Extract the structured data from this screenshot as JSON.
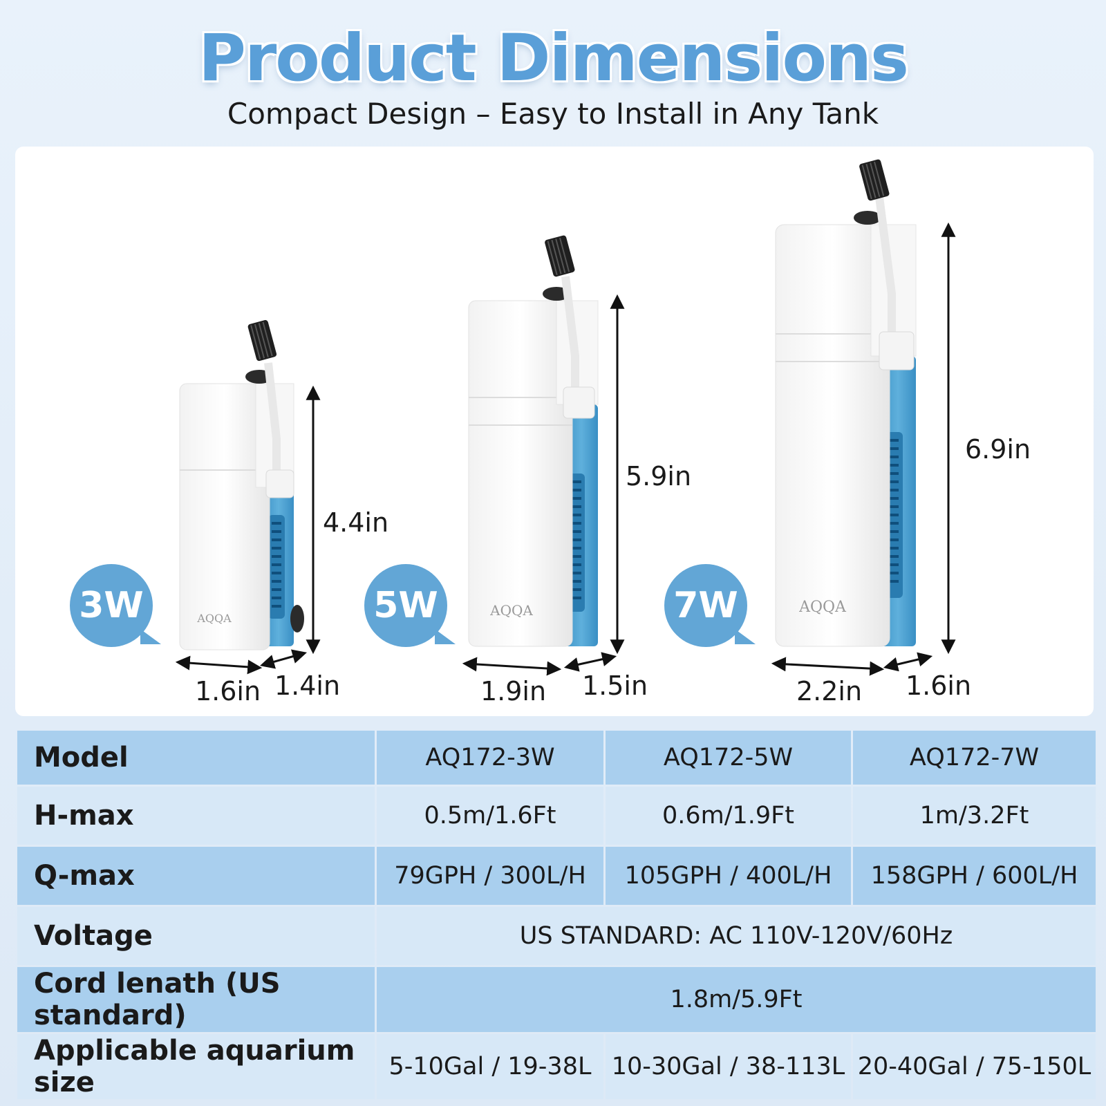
{
  "header": {
    "title": "Product Dimensions",
    "subtitle": "Compact Design – Easy to Install in Any Tank"
  },
  "colors": {
    "accent": "#5a9fd8",
    "badge": "#62a6d6",
    "row_dark": "#a9cfee",
    "row_light": "#d7e8f7",
    "pump_side": "#3a8fc4"
  },
  "products": [
    {
      "badge": "3W",
      "height": "4.4in",
      "width": "1.6in",
      "depth": "1.4in"
    },
    {
      "badge": "5W",
      "height": "5.9in",
      "width": "1.9in",
      "depth": "1.5in"
    },
    {
      "badge": "7W",
      "height": "6.9in",
      "width": "2.2in",
      "depth": "1.6in"
    }
  ],
  "specs": {
    "rows": [
      {
        "label": "Model",
        "values": [
          "AQ172-3W",
          "AQ172-5W",
          "AQ172-7W"
        ]
      },
      {
        "label": "H-max",
        "values": [
          "0.5m/1.6Ft",
          "0.6m/1.9Ft",
          "1m/3.2Ft"
        ]
      },
      {
        "label": "Q-max",
        "values": [
          "79GPH / 300L/H",
          "105GPH / 400L/H",
          "158GPH / 600L/H"
        ]
      },
      {
        "label": "Voltage",
        "value": "US STANDARD: AC 110V-120V/60Hz"
      },
      {
        "label": "Cord lenath (US standard)",
        "value": "1.8m/5.9Ft"
      },
      {
        "label": "Applicable aquarium size",
        "values": [
          "5-10Gal / 19-38L",
          "10-30Gal / 38-113L",
          "20-40Gal / 75-150L"
        ]
      }
    ]
  }
}
